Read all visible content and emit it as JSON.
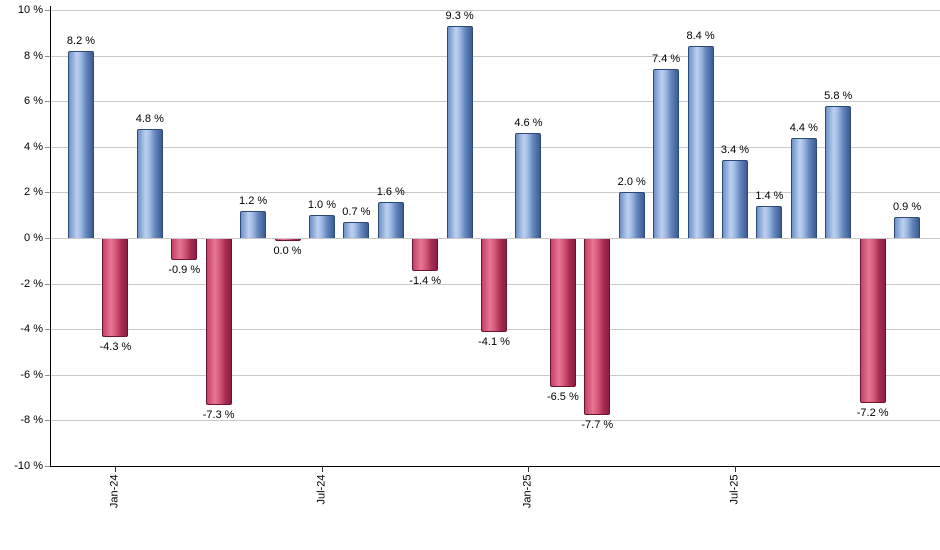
{
  "chart_data": {
    "type": "bar",
    "title": "",
    "xlabel": "",
    "ylabel": "",
    "ylim": [
      -10,
      10
    ],
    "ytick_step": 2,
    "grid": true,
    "legend": "none",
    "value_suffix": " %",
    "ytick_labels": [
      "10 %",
      "8 %",
      "6 %",
      "4 %",
      "2 %",
      "0 %",
      "-2 %",
      "-4 %",
      "-6 %",
      "-8 %",
      "-10 %"
    ],
    "bars": [
      {
        "label": "8.2 %",
        "value": 8.2,
        "color": "positive"
      },
      {
        "label": "-4.3 %",
        "value": -4.3,
        "color": "negative"
      },
      {
        "label": "4.8 %",
        "value": 4.8,
        "color": "positive"
      },
      {
        "label": "-0.9 %",
        "value": -0.9,
        "color": "negative"
      },
      {
        "label": "-7.3 %",
        "value": -7.3,
        "color": "negative"
      },
      {
        "label": "1.2 %",
        "value": 1.2,
        "color": "positive"
      },
      {
        "label": "0.0 %",
        "value": 0.0,
        "color": "negative"
      },
      {
        "label": "1.0 %",
        "value": 1.0,
        "color": "positive"
      },
      {
        "label": "0.7 %",
        "value": 0.7,
        "color": "positive"
      },
      {
        "label": "1.6 %",
        "value": 1.6,
        "color": "positive"
      },
      {
        "label": "-1.4 %",
        "value": -1.4,
        "color": "negative"
      },
      {
        "label": "9.3 %",
        "value": 9.3,
        "color": "positive"
      },
      {
        "label": "-4.1 %",
        "value": -4.1,
        "color": "negative"
      },
      {
        "label": "4.6 %",
        "value": 4.6,
        "color": "positive"
      },
      {
        "label": "-6.5 %",
        "value": -6.5,
        "color": "negative"
      },
      {
        "label": "-7.7 %",
        "value": -7.7,
        "color": "negative"
      },
      {
        "label": "2.0 %",
        "value": 2.0,
        "color": "positive"
      },
      {
        "label": "7.4 %",
        "value": 7.4,
        "color": "positive"
      },
      {
        "label": "8.4 %",
        "value": 8.4,
        "color": "positive"
      },
      {
        "label": "3.4 %",
        "value": 3.4,
        "color": "positive"
      },
      {
        "label": "1.4 %",
        "value": 1.4,
        "color": "positive"
      },
      {
        "label": "4.4 %",
        "value": 4.4,
        "color": "positive"
      },
      {
        "label": "5.8 %",
        "value": 5.8,
        "color": "positive"
      },
      {
        "label": "-7.2 %",
        "value": -7.2,
        "color": "negative"
      },
      {
        "label": "0.9 %",
        "value": 0.9,
        "color": "positive"
      }
    ],
    "x_ticks": [
      {
        "bar_index": 1,
        "label": "Jan-24"
      },
      {
        "bar_index": 7,
        "label": "Jul-24"
      },
      {
        "bar_index": 13,
        "label": "Jan-25"
      },
      {
        "bar_index": 19,
        "label": "Jul-25"
      }
    ],
    "colors": {
      "positive_fill_light": "#bdd1ee",
      "positive_fill_dark": "#3d5c92",
      "positive_border": "#2b4a7a",
      "negative_fill_light": "#e57792",
      "negative_fill_dark": "#8c1e42",
      "negative_border": "#6b1430",
      "gridline": "#c9c9c9",
      "axis": "#000000",
      "text": "#000000",
      "background": "#ffffff"
    }
  }
}
